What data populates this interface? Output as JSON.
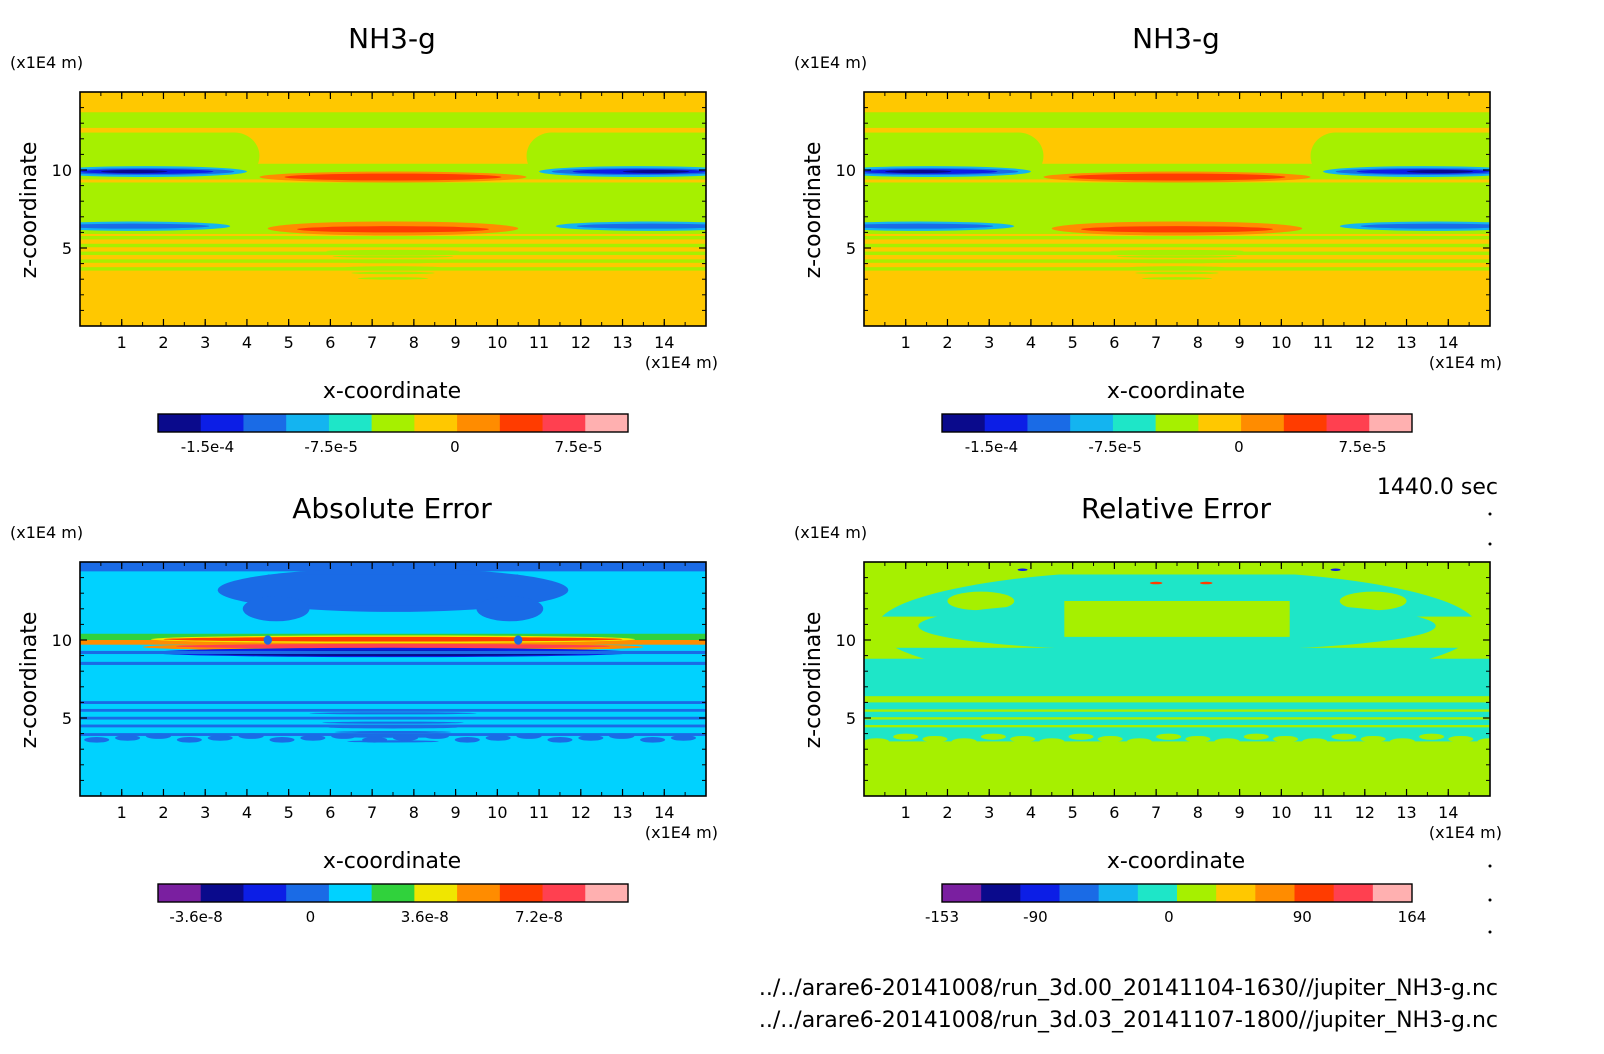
{
  "time_label": "1440.0 sec",
  "files": [
    "../../arare6-20141008/run_3d.00_20141104-1630//jupiter_NH3-g.nc",
    "../../arare6-20141008/run_3d.03_20141107-1800//jupiter_NH3-g.nc"
  ],
  "chart_data": [
    {
      "type": "heatmap",
      "title": "NH3-g",
      "xlabel": "x-coordinate",
      "ylabel": "z-coordinate",
      "x_unit": "(x1E4 m)",
      "y_unit": "(x1E4 m)",
      "xlim": [
        0,
        15
      ],
      "ylim": [
        0,
        15
      ],
      "x_ticks": [
        "1",
        "2",
        "3",
        "4",
        "5",
        "6",
        "7",
        "8",
        "9",
        "10",
        "11",
        "12",
        "13",
        "14"
      ],
      "y_ticks": [
        "5",
        "10"
      ],
      "colorbar": {
        "colors": [
          "#0a0a8c",
          "#0c1ee6",
          "#1a6be6",
          "#14b4f0",
          "#1ee6c8",
          "#a6f000",
          "#ffc800",
          "#ff8c00",
          "#ff3c00",
          "#ff4050",
          "#ffb0b0"
        ],
        "labels": [
          "-1.5e-4",
          "-7.5e-5",
          "0",
          "7.5e-5"
        ],
        "label_values": [
          -0.00015,
          -7.5e-05,
          0,
          7.5e-05
        ],
        "range": [
          -0.00018,
          0.000105
        ]
      },
      "pattern": "nh3"
    },
    {
      "type": "heatmap",
      "title": "NH3-g",
      "xlabel": "x-coordinate",
      "ylabel": "z-coordinate",
      "x_unit": "(x1E4 m)",
      "y_unit": "(x1E4 m)",
      "xlim": [
        0,
        15
      ],
      "ylim": [
        0,
        15
      ],
      "x_ticks": [
        "1",
        "2",
        "3",
        "4",
        "5",
        "6",
        "7",
        "8",
        "9",
        "10",
        "11",
        "12",
        "13",
        "14"
      ],
      "y_ticks": [
        "5",
        "10"
      ],
      "colorbar": {
        "colors": [
          "#0a0a8c",
          "#0c1ee6",
          "#1a6be6",
          "#14b4f0",
          "#1ee6c8",
          "#a6f000",
          "#ffc800",
          "#ff8c00",
          "#ff3c00",
          "#ff4050",
          "#ffb0b0"
        ],
        "labels": [
          "-1.5e-4",
          "-7.5e-5",
          "0",
          "7.5e-5"
        ],
        "label_values": [
          -0.00015,
          -7.5e-05,
          0,
          7.5e-05
        ],
        "range": [
          -0.00018,
          0.000105
        ]
      },
      "pattern": "nh3"
    },
    {
      "type": "heatmap",
      "title": "Absolute Error",
      "xlabel": "x-coordinate",
      "ylabel": "z-coordinate",
      "x_unit": "(x1E4 m)",
      "y_unit": "(x1E4 m)",
      "xlim": [
        0,
        15
      ],
      "ylim": [
        0,
        15
      ],
      "x_ticks": [
        "1",
        "2",
        "3",
        "4",
        "5",
        "6",
        "7",
        "8",
        "9",
        "10",
        "11",
        "12",
        "13",
        "14"
      ],
      "y_ticks": [
        "5",
        "10"
      ],
      "colorbar": {
        "colors": [
          "#7a1fa0",
          "#0a0a8c",
          "#0c1ee6",
          "#1a6be6",
          "#00d2ff",
          "#30d23c",
          "#f0e600",
          "#ff8c00",
          "#ff3c00",
          "#ff4050",
          "#ffb0b0"
        ],
        "labels": [
          "-3.6e-8",
          "0",
          "3.6e-8",
          "7.2e-8"
        ],
        "label_values": [
          -3.6e-08,
          0,
          3.6e-08,
          7.2e-08
        ],
        "range": [
          -4.8e-08,
          1e-07
        ]
      },
      "pattern": "abs"
    },
    {
      "type": "heatmap",
      "title": "Relative Error",
      "xlabel": "x-coordinate",
      "ylabel": "z-coordinate",
      "x_unit": "(x1E4 m)",
      "y_unit": "(x1E4 m)",
      "xlim": [
        0,
        15
      ],
      "ylim": [
        0,
        15
      ],
      "x_ticks": [
        "1",
        "2",
        "3",
        "4",
        "5",
        "6",
        "7",
        "8",
        "9",
        "10",
        "11",
        "12",
        "13",
        "14"
      ],
      "y_ticks": [
        "5",
        "10"
      ],
      "colorbar": {
        "colors": [
          "#7a1fa0",
          "#0a0a8c",
          "#0c1ee6",
          "#1a6be6",
          "#14b4f0",
          "#1ee6c8",
          "#a6f000",
          "#ffc800",
          "#ff8c00",
          "#ff3c00",
          "#ff4050",
          "#ffb0b0"
        ],
        "labels": [
          "-153",
          "-90",
          "0",
          "90",
          "164"
        ],
        "label_values": [
          -153,
          -90,
          0,
          90,
          164
        ],
        "range": [
          -153,
          164
        ]
      },
      "pattern": "rel"
    }
  ]
}
